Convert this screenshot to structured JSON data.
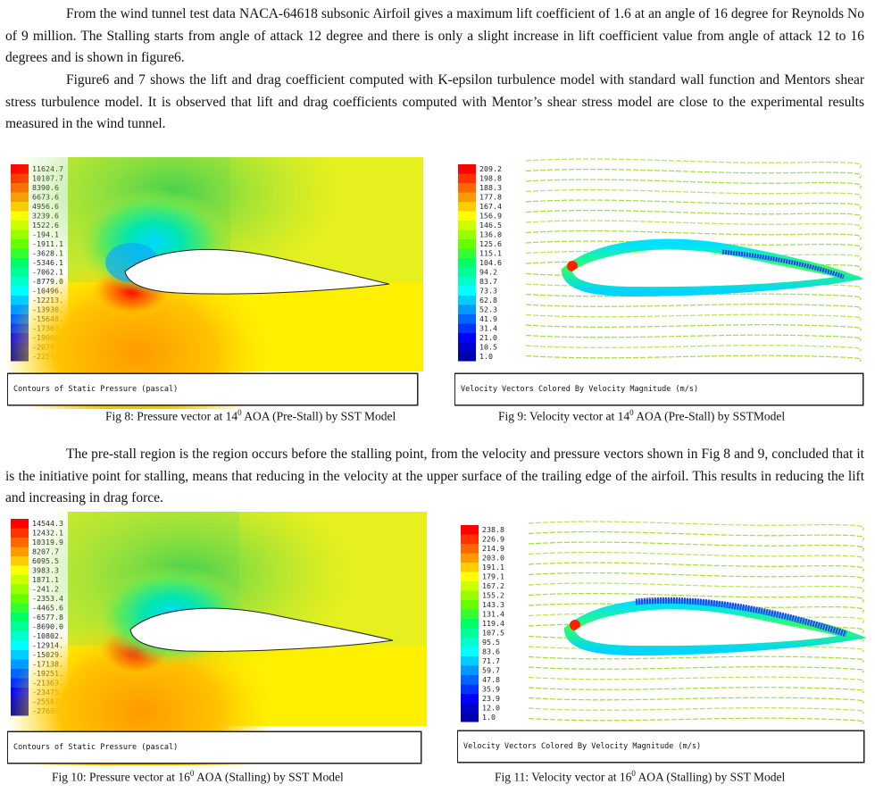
{
  "paragraphs": {
    "p1": "From the wind tunnel test data NACA-64618 subsonic Airfoil gives a maximum lift coefficient of 1.6 at an angle of 16 degree for Reynolds No of 9 million. The Stalling starts from angle of attack 12 degree and there is only a slight increase in lift coefficient value from angle of attack 12 to 16 degrees and is shown in figure6.",
    "p2": "Figure6 and 7 shows the lift and drag coefficient computed with K-epsilon turbulence model with standard wall function and Mentors shear stress turbulence model. It is observed that lift and drag coefficients computed with Mentor’s shear stress model are close to the experimental results measured in the wind tunnel.",
    "p3": "The pre-stall region is the region occurs before the stalling point, from the velocity and pressure vectors shown in Fig 8 and 9, concluded that it is the initiative point for stalling, means that reducing in the velocity at the upper surface of the trailing edge of the airfoil. This results in reducing the lift and increasing in drag force."
  },
  "figures": {
    "fig8": {
      "legend": [
        "11624.7",
        "10107.7",
        "8390.6",
        "6673.6",
        "4956.6",
        "3239.6",
        "1522.6",
        "-194.1",
        "-1911.1",
        "-3628.1",
        "-5346.1",
        "-7062.1",
        "-8779.0",
        "-10496.",
        "-12213.",
        "-13930.",
        "-15648.",
        "-17363.",
        "-19080.",
        "-20797.",
        "-22514."
      ],
      "label": "Contours of Static Pressure (pascal)",
      "caption_pre": "Fig 8: Pressure vector at 14",
      "caption_sup": "0",
      "caption_post": " AOA (Pre-Stall) by SST Model"
    },
    "fig9": {
      "legend": [
        "209.2",
        "198.8",
        "188.3",
        "177.8",
        "167.4",
        "156.9",
        "146.5",
        "136.0",
        "125.6",
        "115.1",
        "104.6",
        "94.2",
        "83.7",
        "73.3",
        "62.8",
        "52.3",
        "41.9",
        "31.4",
        "21.0",
        "10.5",
        "1.0"
      ],
      "label": "Velocity Vectors Colored By Velocity Magnitude (m/s)",
      "caption_pre": "Fig 9: Velocity vector at 14",
      "caption_sup": "0",
      "caption_post": " AOA (Pre-Stall) by SSTModel"
    },
    "fig10": {
      "legend": [
        "14544.3",
        "12432.1",
        "10319.9",
        "8207.7",
        "6095.5",
        "3983.3",
        "1871.1",
        "-241.2",
        "-2353.4",
        "-4465.6",
        "-6577.8",
        "-8690.0",
        "-10802.",
        "-12914.",
        "-15029.",
        "-17138.",
        "-19251.",
        "-21363.",
        "-23475.",
        "-25587.",
        "-27699."
      ],
      "label": "Contours of Static Pressure (pascal)",
      "caption_pre": "Fig 10: Pressure vector at 16",
      "caption_sup": "0",
      "caption_post": " AOA (Stalling) by SST Model"
    },
    "fig11": {
      "legend": [
        "238.8",
        "226.9",
        "214.9",
        "203.0",
        "191.1",
        "179.1",
        "167.2",
        "155.2",
        "143.3",
        "131.4",
        "119.4",
        "107.5",
        "95.5",
        "83.6",
        "71.7",
        "59.7",
        "47.8",
        "35.9",
        "23.9",
        "12.0",
        "1.0"
      ],
      "label": "Velocity Vectors Colored By Velocity Magnitude (m/s)",
      "caption_pre": "Fig 11: Velocity vector at 16",
      "caption_sup": "0",
      "caption_post": " AOA (Stalling) by SST Model"
    }
  },
  "colors": {
    "legend_scale": [
      "#ff0000",
      "#ff3300",
      "#ff6600",
      "#ff9900",
      "#ffcc00",
      "#ffff00",
      "#ccff00",
      "#99ff00",
      "#66ff00",
      "#33ff33",
      "#00ff66",
      "#00ff99",
      "#00ffcc",
      "#00ffff",
      "#00ccff",
      "#0099ff",
      "#0066ff",
      "#0033ff",
      "#0000ff",
      "#0000cc",
      "#0000aa"
    ]
  }
}
